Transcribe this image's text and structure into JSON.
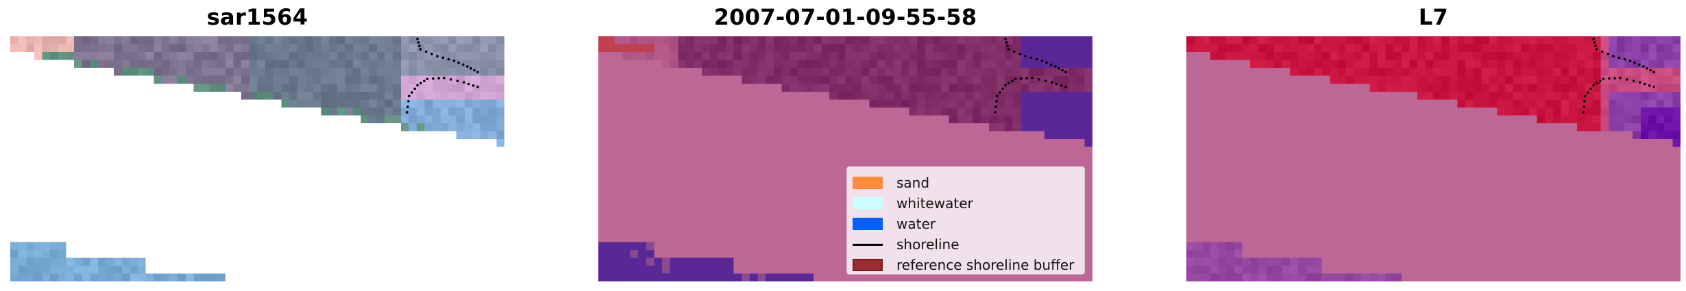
{
  "panels": [
    {
      "title": "sar1564",
      "kind": "rgb"
    },
    {
      "title": "2007-07-01-09-55-58",
      "kind": "classified"
    },
    {
      "title": "L7",
      "kind": "index"
    }
  ],
  "legend": {
    "items": [
      {
        "label": "sand",
        "type": "patch",
        "color": "#ff8c3a"
      },
      {
        "label": "whitewater",
        "type": "patch",
        "color": "#ccffff"
      },
      {
        "label": "water",
        "type": "patch",
        "color": "#0061ff"
      },
      {
        "label": "shoreline",
        "type": "line",
        "color": "#000000"
      },
      {
        "label": "reference shoreline buffer",
        "type": "patch",
        "color": "#9b2d30"
      }
    ]
  },
  "colors": {
    "land_overlay": "#bc6795",
    "water_overlay": "#5a2896",
    "buffer_overlay": "#7f2c67",
    "index_high": "#c8143f",
    "index_low": "#9448a0"
  }
}
